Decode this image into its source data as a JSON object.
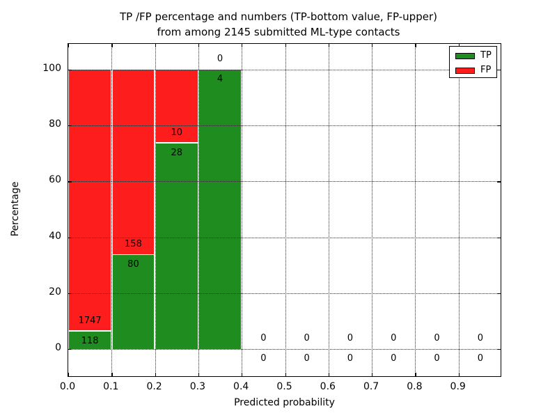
{
  "figure": {
    "title_line1": "TP /FP percentage and numbers (TP-bottom value, FP-upper)",
    "title_line2": "from among 2145 submitted ML-type contacts"
  },
  "legend": {
    "position": "upper right",
    "items": [
      {
        "label": "TP",
        "color": "#1e8c1e"
      },
      {
        "label": "FP",
        "color": "#fd1d1d"
      }
    ]
  },
  "chart_data": {
    "type": "bar",
    "stacked": true,
    "normalized_to_percent": true,
    "title": "TP /FP percentage and numbers (TP-bottom value, FP-upper) from among 2145 submitted ML-type contacts",
    "xlabel": "Predicted probability",
    "ylabel": "Percentage",
    "total_submitted_contacts": 2145,
    "bin_edges": [
      0.0,
      0.1,
      0.2,
      0.3,
      0.4,
      0.5,
      0.6,
      0.7,
      0.8,
      0.9,
      1.0
    ],
    "categories": [
      "0.0-0.1",
      "0.1-0.2",
      "0.2-0.3",
      "0.3-0.4",
      "0.4-0.5",
      "0.5-0.6",
      "0.6-0.7",
      "0.7-0.8",
      "0.8-0.9",
      "0.9-1.0"
    ],
    "series": [
      {
        "name": "TP",
        "color": "#1e8c1e",
        "counts": [
          118,
          80,
          28,
          4,
          0,
          0,
          0,
          0,
          0,
          0
        ],
        "pct": [
          6.33,
          33.61,
          73.68,
          100,
          0,
          0,
          0,
          0,
          0,
          0
        ]
      },
      {
        "name": "FP",
        "color": "#fd1d1d",
        "counts": [
          1747,
          158,
          10,
          0,
          0,
          0,
          0,
          0,
          0,
          0
        ],
        "pct": [
          93.67,
          66.39,
          26.32,
          0,
          0,
          0,
          0,
          0,
          0,
          0
        ]
      }
    ],
    "xticks": [
      "0.0",
      "0.1",
      "0.2",
      "0.3",
      "0.4",
      "0.5",
      "0.6",
      "0.7",
      "0.8",
      "0.9"
    ],
    "yticks": [
      "0",
      "20",
      "40",
      "60",
      "80",
      "100"
    ],
    "ytick_values": [
      0,
      20,
      40,
      60,
      80,
      100
    ],
    "xlim": [
      0.0,
      1.0
    ],
    "ylim": [
      -10,
      110
    ],
    "grid": true,
    "grid_style": "dotted"
  }
}
